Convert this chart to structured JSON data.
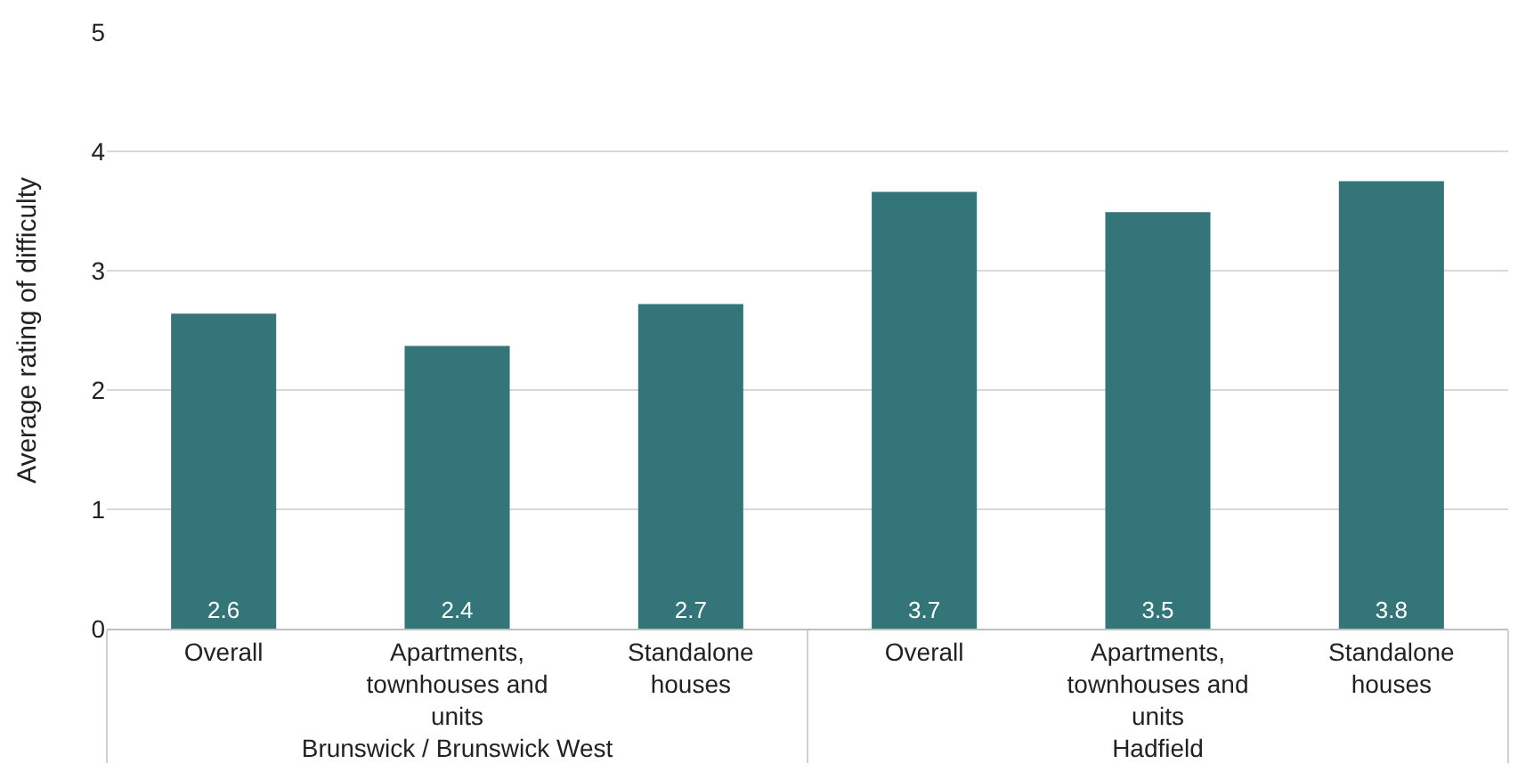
{
  "chart_data": {
    "type": "bar",
    "ylabel": "Average rating of difficulty",
    "categories": [
      "Overall",
      "Apartments, townhouses and units",
      "Standalone houses",
      "Overall",
      "Apartments, townhouses and units",
      "Standalone houses"
    ],
    "values": [
      2.64,
      2.37,
      2.72,
      3.66,
      3.49,
      3.75
    ],
    "value_labels": [
      "2.6",
      "2.4",
      "2.7",
      "3.7",
      "3.5",
      "3.8"
    ],
    "color": "#337579",
    "ylim": [
      0,
      5
    ],
    "yticks": [
      0,
      1,
      2,
      3,
      4,
      5
    ],
    "grid": "y",
    "legend": false,
    "annotations": [
      "Brunswick / Brunswick West",
      "Hadfield"
    ]
  }
}
